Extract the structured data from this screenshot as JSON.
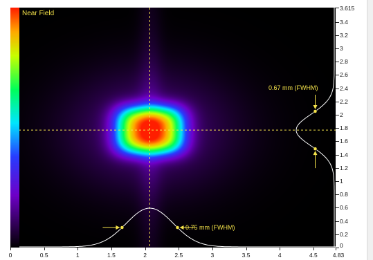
{
  "view": {
    "title": "Near Field"
  },
  "annotations": {
    "fwhm_y": "0.67 mm (FWHM)",
    "fwhm_x": "0.75 mm (FWHM)"
  },
  "axes": {
    "x_min": 0,
    "x_max": 4.83,
    "x_ticks": [
      "0",
      "0.5",
      "1",
      "1.5",
      "2",
      "2.5",
      "3",
      "3.5",
      "4",
      "4.5",
      "4.83"
    ],
    "y_min": 0,
    "y_max": 3.615,
    "y_ticks": [
      "3.615",
      "3.4",
      "3.2",
      "3",
      "2.8",
      "2.6",
      "2.4",
      "2.2",
      "2",
      "1.8",
      "1.6",
      "1.4",
      "1.2",
      "1",
      "0.8",
      "0.6",
      "0.4",
      "0.2",
      "0"
    ]
  },
  "beam": {
    "center_x": 2.07,
    "center_y": 1.77,
    "fwhm_x_mm": 0.75,
    "fwhm_y_mm": 0.67
  },
  "colors": {
    "overlay": "#f4e24a",
    "profile": "#ffffff",
    "background": "#000000"
  }
}
